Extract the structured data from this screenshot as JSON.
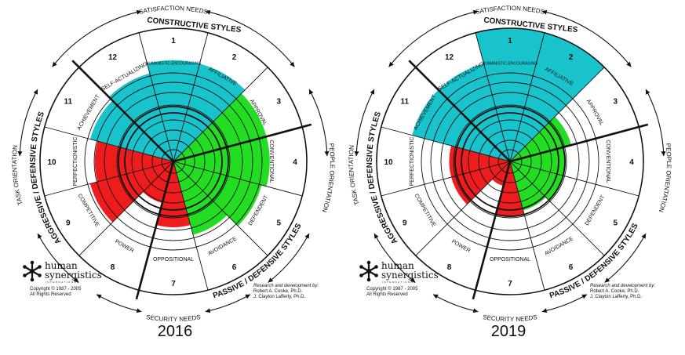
{
  "colors": {
    "constructive": "#19c3cc",
    "passive_defensive": "#22dd22",
    "aggressive_defensive": "#ee1c1c",
    "line": "#111111"
  },
  "labels": {
    "satisfaction_needs": "SATISFACTION NEEDS",
    "security_needs": "SECURITY NEEDS",
    "people_orientation": "PEOPLE ORIENTATION",
    "task_orientation": "TASK ORIENTATION",
    "constructive_styles": "CONSTRUCTIVE STYLES",
    "passive_defensive_styles": "PASSIVE / DEFENSIVE STYLES",
    "aggressive_defensive_styles": "AGGRESSIVE / DEFENSIVE STYLES"
  },
  "logo": {
    "line1": "human",
    "line2": "synergistics",
    "line3": "INTERNATIONAL",
    "copyright": "Copyright © 1987 - 2005",
    "rights": "All Rights Reserved"
  },
  "credits": {
    "line1": "Research and development by:",
    "line2": "Robert A. Cooke, Ph.D.",
    "line3": "J. Clayton Lafferty, Ph.D."
  },
  "chart_data": [
    {
      "type": "circumplex",
      "title": "2016",
      "sectors": [
        {
          "number": "1",
          "name": "HUMANISTIC-ENCOURAGING",
          "group": "constructive",
          "value": 0.4
        },
        {
          "number": "2",
          "name": "AFFILIATIVE",
          "group": "constructive",
          "value": 0.4
        },
        {
          "number": "3",
          "name": "APPROVAL",
          "group": "passive_defensive",
          "value": 0.38
        },
        {
          "number": "4",
          "name": "CONVENTIONAL",
          "group": "passive_defensive",
          "value": 0.38
        },
        {
          "number": "5",
          "name": "DEPENDENT",
          "group": "passive_defensive",
          "value": 0.36
        },
        {
          "number": "6",
          "name": "AVOIDANCE",
          "group": "passive_defensive",
          "value": 0.3
        },
        {
          "number": "7",
          "name": "OPPOSITIONAL",
          "group": "aggressive_defensive",
          "value": 0.26
        },
        {
          "number": "8",
          "name": "POWER",
          "group": "aggressive_defensive",
          "value": 0.17
        },
        {
          "number": "9",
          "name": "COMPETITIVE",
          "group": "aggressive_defensive",
          "value": 0.34
        },
        {
          "number": "10",
          "name": "PERFECTIONISTIC",
          "group": "aggressive_defensive",
          "value": 0.31
        },
        {
          "number": "11",
          "name": "ACHIEVEMENT",
          "group": "constructive",
          "value": 0.34
        },
        {
          "number": "12",
          "name": "SELF-ACTUALIZING",
          "group": "constructive",
          "value": 0.36
        }
      ]
    },
    {
      "type": "circumplex",
      "title": "2019",
      "sectors": [
        {
          "number": "1",
          "name": "HUMANISTIC-ENCOURAGING",
          "group": "constructive",
          "value": 0.56
        },
        {
          "number": "2",
          "name": "AFFILIATIVE",
          "group": "constructive",
          "value": 0.56
        },
        {
          "number": "3",
          "name": "APPROVAL",
          "group": "passive_defensive",
          "value": 0.25
        },
        {
          "number": "4",
          "name": "CONVENTIONAL",
          "group": "passive_defensive",
          "value": 0.22
        },
        {
          "number": "5",
          "name": "DEPENDENT",
          "group": "passive_defensive",
          "value": 0.22
        },
        {
          "number": "6",
          "name": "AVOIDANCE",
          "group": "passive_defensive",
          "value": 0.2
        },
        {
          "number": "7",
          "name": "OPPOSITIONAL",
          "group": "aggressive_defensive",
          "value": 0.22
        },
        {
          "number": "8",
          "name": "POWER",
          "group": "aggressive_defensive",
          "value": 0.1
        },
        {
          "number": "9",
          "name": "COMPETITIVE",
          "group": "aggressive_defensive",
          "value": 0.24
        },
        {
          "number": "10",
          "name": "PERFECTIONISTIC",
          "group": "aggressive_defensive",
          "value": 0.24
        },
        {
          "number": "11",
          "name": "ACHIEVEMENT",
          "group": "constructive",
          "value": 0.4
        },
        {
          "number": "12",
          "name": "SELF-ACTUALIZING",
          "group": "constructive",
          "value": 0.4
        }
      ]
    }
  ]
}
